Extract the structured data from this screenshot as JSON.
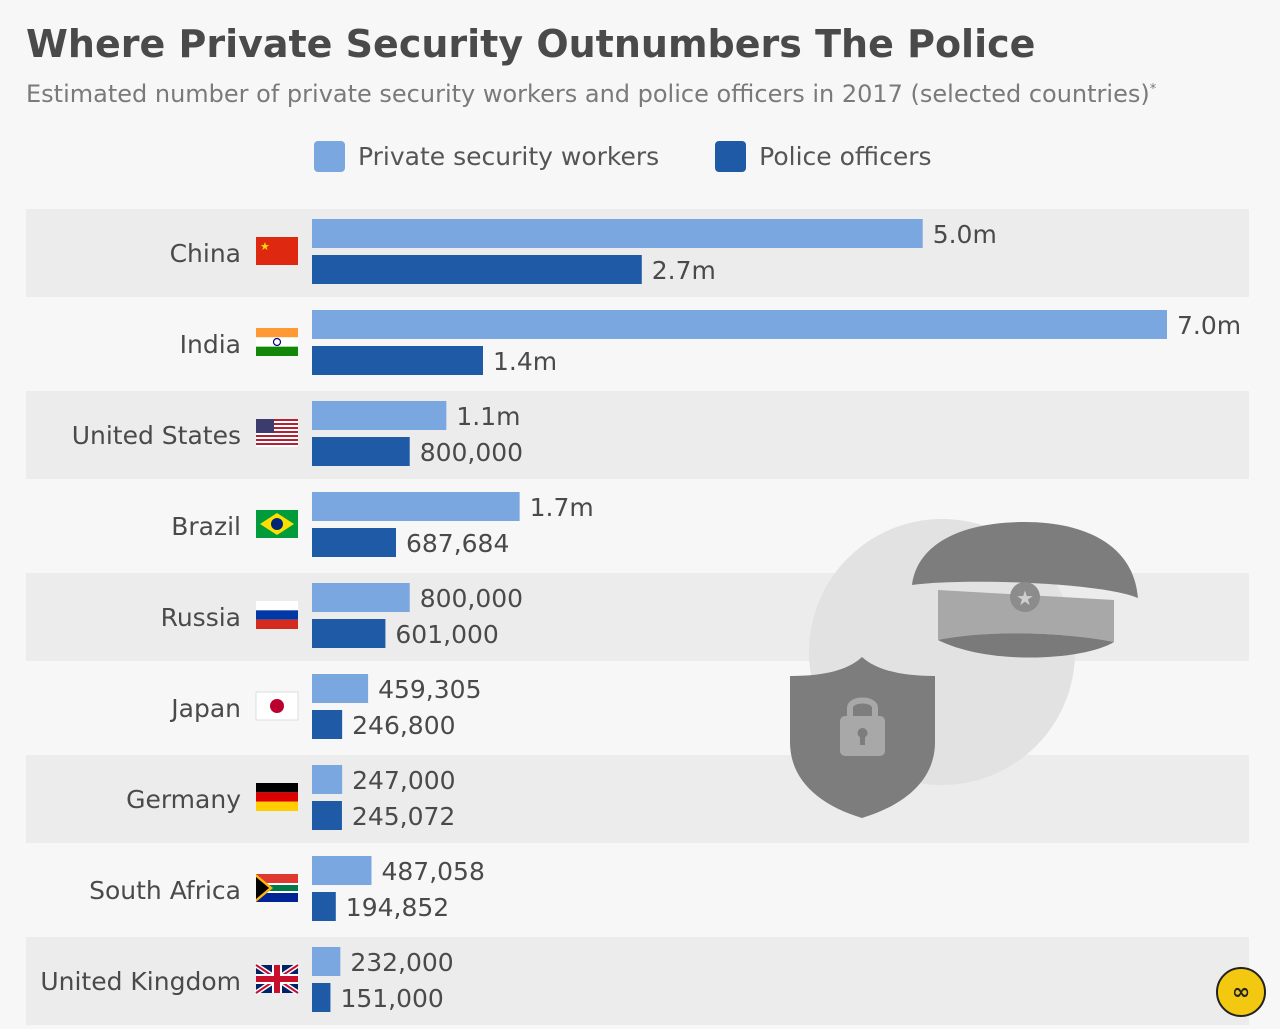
{
  "title": "Where Private Security Outnumbers The Police",
  "subtitle": "Estimated number of private security workers and police officers in 2017 (selected countries)",
  "subtitle_footnote_mark": "*",
  "legend": [
    {
      "name": "Private security workers",
      "color": "#7ba7e1"
    },
    {
      "name": "Police officers",
      "color": "#1f5aa6"
    }
  ],
  "badge_icon": "infinity-badge-icon",
  "chart_data": {
    "type": "bar",
    "orientation": "horizontal",
    "title": "Where Private Security Outnumbers The Police",
    "subtitle": "Estimated number of private security workers and police officers in 2017 (selected countries)",
    "categories": [
      "China",
      "India",
      "United States",
      "Brazil",
      "Russia",
      "Japan",
      "Germany",
      "South Africa",
      "United Kingdom"
    ],
    "flags": [
      "china-flag-icon",
      "india-flag-icon",
      "usa-flag-icon",
      "brazil-flag-icon",
      "russia-flag-icon",
      "japan-flag-icon",
      "germany-flag-icon",
      "south-africa-flag-icon",
      "uk-flag-icon"
    ],
    "series": [
      {
        "name": "Private security workers",
        "color": "#7ba7e1",
        "values": [
          5000000,
          7000000,
          1100000,
          1700000,
          800000,
          459305,
          247000,
          487058,
          232000
        ],
        "labels": [
          "5.0m",
          "7.0m",
          "1.1m",
          "1.7m",
          "800,000",
          "459,305",
          "247,000",
          "487,058",
          "232,000"
        ]
      },
      {
        "name": "Police officers",
        "color": "#1f5aa6",
        "values": [
          2700000,
          1400000,
          800000,
          687684,
          601000,
          246800,
          245072,
          194852,
          151000
        ],
        "labels": [
          "2.7m",
          "1.4m",
          "800,000",
          "687,684",
          "601,000",
          "246,800",
          "245,072",
          "194,852",
          "151,000"
        ]
      }
    ],
    "xlim": [
      0,
      7000000
    ],
    "grid": false,
    "legend_position": "top",
    "row_band_colors": [
      "#ececec",
      "#f7f7f7"
    ],
    "decoration_icons": [
      "police-cap-icon",
      "shield-lock-icon"
    ]
  }
}
